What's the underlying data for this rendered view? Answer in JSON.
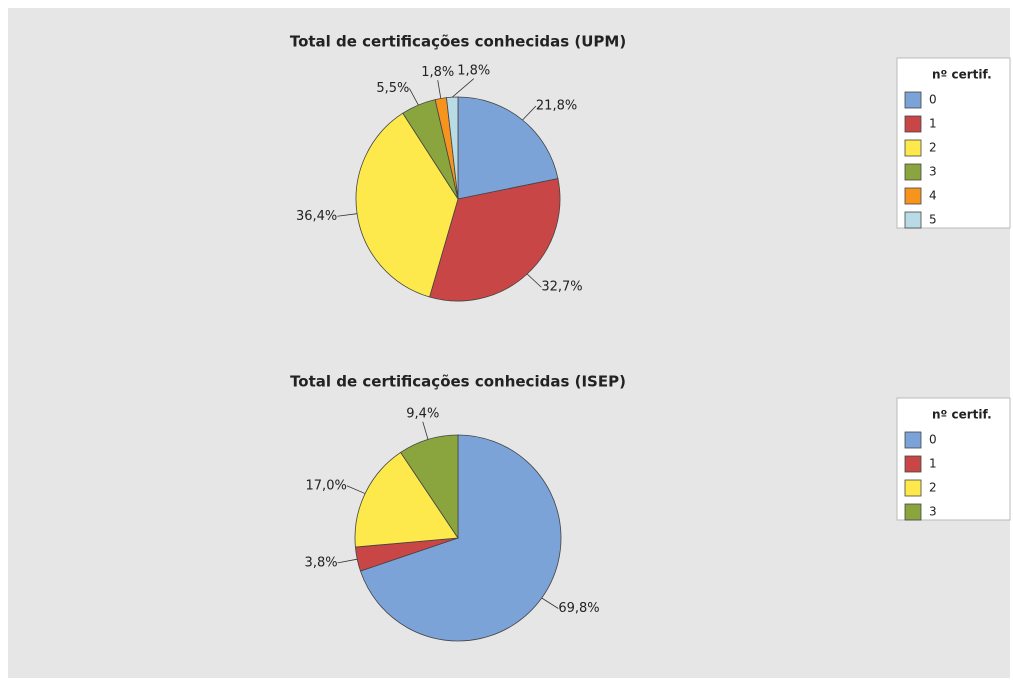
{
  "chart_data": [
    {
      "type": "pie",
      "title": "Total de certificações conhecidas (UPM)",
      "legend_title": "nº certif.",
      "categories": [
        "0",
        "1",
        "2",
        "3",
        "4",
        "5"
      ],
      "values": [
        21.8,
        32.7,
        36.4,
        5.5,
        1.8,
        1.8
      ],
      "value_labels": [
        "21,8%",
        "32,7%",
        "36,4%",
        "5,5%",
        "1,8%",
        "1,8%"
      ],
      "colors": [
        "#7ba3d8",
        "#c94646",
        "#fde94b",
        "#8aa53d",
        "#f7941d",
        "#b8dbe6"
      ]
    },
    {
      "type": "pie",
      "title": "Total de certificações conhecidas (ISEP)",
      "legend_title": "nº certif.",
      "categories": [
        "0",
        "1",
        "2",
        "3"
      ],
      "values": [
        69.8,
        3.8,
        17.0,
        9.4
      ],
      "value_labels": [
        "69,8%",
        "3,8%",
        "17,0%",
        "9,4%"
      ],
      "colors": [
        "#7ba3d8",
        "#c94646",
        "#fde94b",
        "#8aa53d"
      ]
    }
  ]
}
